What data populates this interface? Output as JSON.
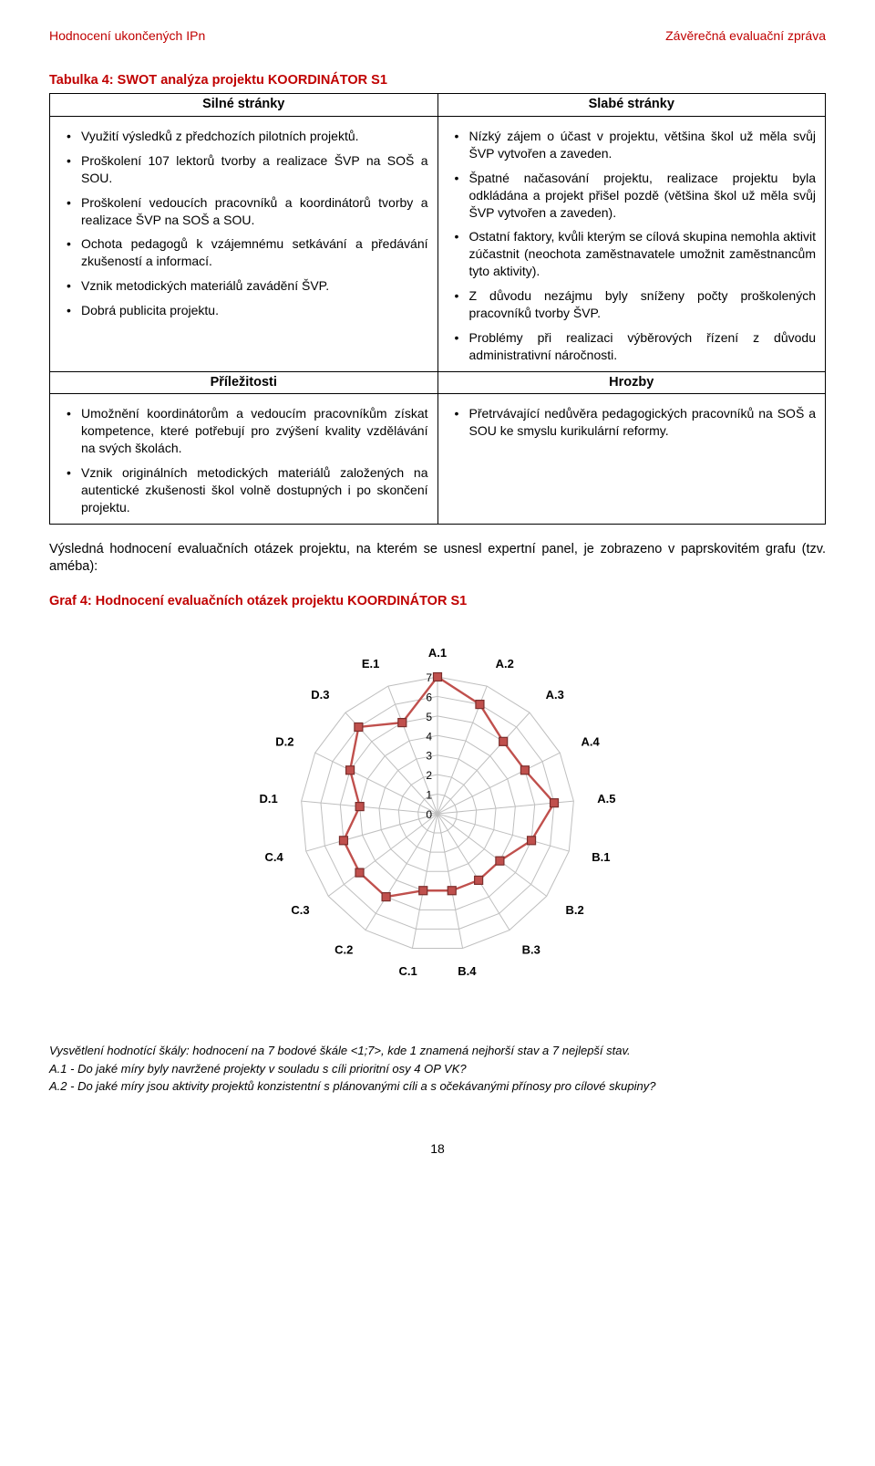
{
  "header": {
    "left": "Hodnocení ukončených IPn",
    "right": "Závěrečná evaluační zpráva"
  },
  "swot": {
    "caption": "Tabulka 4: SWOT analýza projektu KOORDINÁTOR S1",
    "headers": {
      "s": "Silné stránky",
      "w": "Slabé stránky",
      "o": "Příležitosti",
      "t": "Hrozby"
    },
    "strengths": [
      "Využití výsledků z předchozích pilotních projektů.",
      "Proškolení 107 lektorů tvorby a realizace ŠVP na SOŠ a SOU.",
      "Proškolení vedoucích pracovníků a koordinátorů tvorby a realizace ŠVP na SOŠ a SOU.",
      "Ochota pedagogů k vzájemnému setkávání a předávání zkušeností a informací.",
      "Vznik metodických materiálů zavádění ŠVP.",
      "Dobrá publicita projektu."
    ],
    "weaknesses": [
      "Nízký zájem o účast v projektu, většina škol už měla svůj ŠVP vytvořen a zaveden.",
      "Špatné načasování projektu, realizace projektu byla odkládána a projekt přišel pozdě (většina škol už měla svůj ŠVP vytvořen a zaveden).",
      "Ostatní faktory, kvůli kterým se cílová skupina nemohla aktivit zúčastnit (neochota zaměstnavatele umožnit zaměstnancům tyto aktivity).",
      "Z důvodu nezájmu byly sníženy počty proškolených pracovníků tvorby ŠVP.",
      "Problémy při realizaci výběrových řízení z důvodu administrativní náročnosti."
    ],
    "opportunities": [
      "Umožnění koordinátorům a vedoucím pracovníkům získat kompetence, které potřebují pro zvýšení kvality vzdělávání na svých školách.",
      "Vznik originálních metodických materiálů založených na autentické zkušenosti škol volně dostupných i po skončení projektu."
    ],
    "threats": [
      "Přetrvávající nedůvěra pedagogických pracovníků na SOŠ a SOU ke smyslu kurikulární reformy."
    ]
  },
  "paragraph": "Výsledná hodnocení evaluačních otázek projektu, na kterém se usnesl expertní panel, je zobrazeno v paprskovitém grafu (tzv. améba):",
  "chart": {
    "caption": "Graf 4: Hodnocení evaluačních otázek projektu KOORDINÁTOR S1",
    "type": "radar",
    "axes": [
      "A.1",
      "A.2",
      "A.3",
      "A.4",
      "A.5",
      "B.1",
      "B.2",
      "B.3",
      "B.4",
      "C.1",
      "C.2",
      "C.3",
      "C.4",
      "D.1",
      "D.2",
      "D.3",
      "E.1"
    ],
    "values": [
      7,
      6,
      5,
      5,
      6,
      5,
      4,
      4,
      4,
      4,
      5,
      5,
      5,
      4,
      5,
      6,
      5
    ],
    "scale": {
      "min": 0,
      "max": 7,
      "ticks": [
        0,
        1,
        2,
        3,
        4,
        5,
        6,
        7
      ]
    },
    "line_color": "#c0504d",
    "line_width": 2.4,
    "marker_fill": "#c0504d",
    "marker_stroke": "#7b2e2c",
    "marker_size": 9,
    "grid_color": "#bfbfbf",
    "background_color": "#ffffff",
    "label_fontsize": 13,
    "tick_fontsize": 12
  },
  "footer": [
    "Vysvětlení hodnotící škály: hodnocení na 7 bodové škále <1;7>, kde 1 znamená nejhorší stav a 7 nejlepší stav.",
    "A.1 - Do jaké míry byly navržené projekty v souladu s cíli prioritní osy 4 OP VK?",
    "A.2 - Do jaké míry jsou aktivity projektů konzistentní s plánovanými cíli a s očekávanými přínosy pro cílové skupiny?"
  ],
  "page_number": "18"
}
